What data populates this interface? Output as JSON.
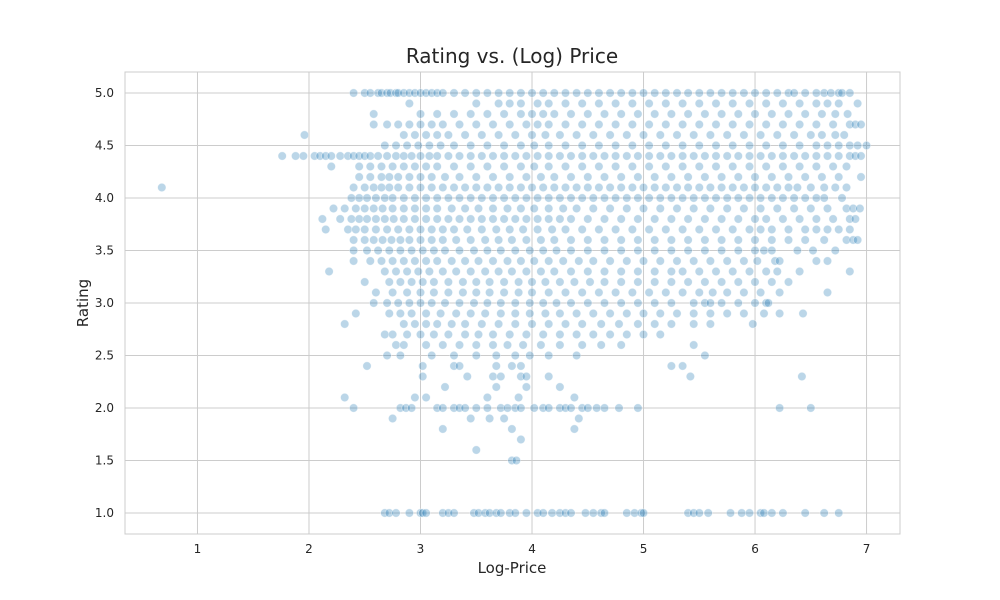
{
  "chart_data": {
    "type": "scatter",
    "title": "Rating vs. (Log) Price",
    "xlabel": "Log-Price",
    "ylabel": "Rating",
    "xlim": [
      0.35,
      7.3
    ],
    "ylim": [
      0.8,
      5.2
    ],
    "xticks": [
      1,
      2,
      3,
      4,
      5,
      6,
      7
    ],
    "yticks": [
      "1.0",
      "1.5",
      "2.0",
      "2.5",
      "3.0",
      "3.5",
      "4.0",
      "4.5",
      "5.0"
    ],
    "grid": true,
    "color": "#1f77b4",
    "rating_bands": [
      {
        "rating": 5.0,
        "x": [
          2.4,
          2.5,
          2.55,
          2.62,
          2.65,
          2.7,
          2.73,
          2.78,
          2.8,
          2.85,
          2.9,
          2.95,
          3.0,
          3.05,
          3.1,
          3.15,
          3.2,
          3.3,
          3.4,
          3.5,
          3.6,
          3.7,
          3.8,
          3.9,
          4.0,
          4.1,
          4.2,
          4.3,
          4.4,
          4.5,
          4.6,
          4.7,
          4.8,
          4.9,
          5.0,
          5.1,
          5.2,
          5.3,
          5.4,
          5.5,
          5.6,
          5.7,
          5.8,
          5.9,
          6.0,
          6.1,
          6.2,
          6.3,
          6.35,
          6.45,
          6.55,
          6.62,
          6.68,
          6.75,
          6.78,
          6.85
        ]
      },
      {
        "rating": 4.9,
        "x": [
          2.9,
          3.5,
          3.7,
          3.8,
          3.9,
          4.05,
          4.15,
          4.3,
          4.45,
          4.6,
          4.75,
          4.9,
          5.05,
          5.2,
          5.35,
          5.5,
          5.65,
          5.8,
          5.95,
          6.1,
          6.25,
          6.4,
          6.55,
          6.65,
          6.75,
          6.92
        ]
      },
      {
        "rating": 4.8,
        "x": [
          2.58,
          3.0,
          3.15,
          3.3,
          3.45,
          3.6,
          3.75,
          3.9,
          4.0,
          4.1,
          4.2,
          4.35,
          4.5,
          4.65,
          4.8,
          4.95,
          5.1,
          5.25,
          5.4,
          5.55,
          5.7,
          5.85,
          6.0,
          6.15,
          6.3,
          6.45,
          6.6,
          6.72,
          6.83
        ]
      },
      {
        "rating": 4.7,
        "x": [
          2.58,
          2.7,
          2.8,
          2.9,
          3.0,
          3.1,
          3.2,
          3.35,
          3.5,
          3.65,
          3.8,
          3.95,
          4.05,
          4.15,
          4.3,
          4.45,
          4.6,
          4.75,
          4.9,
          5.05,
          5.2,
          5.35,
          5.5,
          5.65,
          5.8,
          5.95,
          6.1,
          6.25,
          6.4,
          6.55,
          6.7,
          6.85,
          6.9,
          6.95
        ]
      },
      {
        "rating": 4.6,
        "x": [
          1.96,
          2.85,
          2.95,
          3.05,
          3.15,
          3.25,
          3.4,
          3.55,
          3.7,
          3.85,
          4.0,
          4.12,
          4.25,
          4.4,
          4.55,
          4.7,
          4.85,
          5.0,
          5.15,
          5.3,
          5.45,
          5.6,
          5.75,
          5.9,
          6.05,
          6.2,
          6.35,
          6.5,
          6.6,
          6.72,
          6.8
        ]
      },
      {
        "rating": 4.5,
        "x": [
          2.68,
          2.78,
          2.88,
          2.98,
          3.08,
          3.18,
          3.3,
          3.45,
          3.6,
          3.75,
          3.9,
          4.02,
          4.15,
          4.3,
          4.45,
          4.6,
          4.75,
          4.9,
          5.05,
          5.2,
          5.35,
          5.5,
          5.65,
          5.8,
          5.95,
          6.1,
          6.25,
          6.4,
          6.55,
          6.65,
          6.75,
          6.85,
          6.92,
          7.0
        ]
      },
      {
        "rating": 4.4,
        "x": [
          1.76,
          1.88,
          1.95,
          2.05,
          2.1,
          2.15,
          2.2,
          2.28,
          2.35,
          2.4,
          2.45,
          2.5,
          2.55,
          2.62,
          2.7,
          2.78,
          2.85,
          2.92,
          3.0,
          3.08,
          3.15,
          3.25,
          3.35,
          3.45,
          3.55,
          3.65,
          3.75,
          3.85,
          3.95,
          4.05,
          4.15,
          4.25,
          4.35,
          4.45,
          4.55,
          4.65,
          4.75,
          4.85,
          4.95,
          5.05,
          5.15,
          5.25,
          5.35,
          5.45,
          5.55,
          5.65,
          5.75,
          5.85,
          5.95,
          6.05,
          6.15,
          6.25,
          6.35,
          6.45,
          6.55,
          6.65,
          6.75,
          6.85,
          6.9,
          6.95
        ]
      },
      {
        "rating": 4.3,
        "x": [
          2.2,
          2.45,
          2.55,
          2.65,
          2.75,
          2.85,
          2.95,
          3.05,
          3.15,
          3.3,
          3.45,
          3.6,
          3.75,
          3.9,
          4.02,
          4.15,
          4.3,
          4.45,
          4.6,
          4.75,
          4.9,
          5.05,
          5.2,
          5.35,
          5.5,
          5.65,
          5.8,
          5.95,
          6.1,
          6.25,
          6.4,
          6.55,
          6.7,
          6.82
        ]
      },
      {
        "rating": 4.2,
        "x": [
          2.45,
          2.55,
          2.65,
          2.72,
          2.8,
          2.9,
          3.0,
          3.1,
          3.22,
          3.35,
          3.5,
          3.65,
          3.8,
          3.95,
          4.08,
          4.2,
          4.35,
          4.5,
          4.65,
          4.8,
          4.95,
          5.1,
          5.25,
          5.4,
          5.55,
          5.7,
          5.85,
          6.0,
          6.15,
          6.3,
          6.45,
          6.6,
          6.75,
          6.95
        ]
      },
      {
        "rating": 4.1,
        "x": [
          0.68,
          2.4,
          2.5,
          2.58,
          2.65,
          2.72,
          2.8,
          2.9,
          3.0,
          3.1,
          3.2,
          3.3,
          3.4,
          3.5,
          3.6,
          3.7,
          3.8,
          3.9,
          4.0,
          4.1,
          4.2,
          4.3,
          4.4,
          4.5,
          4.6,
          4.7,
          4.8,
          4.9,
          5.0,
          5.1,
          5.2,
          5.3,
          5.4,
          5.5,
          5.6,
          5.7,
          5.8,
          5.9,
          6.0,
          6.1,
          6.2,
          6.3,
          6.38,
          6.5,
          6.62,
          6.72,
          6.82
        ]
      },
      {
        "rating": 4.0,
        "x": [
          2.38,
          2.45,
          2.52,
          2.6,
          2.68,
          2.75,
          2.85,
          2.95,
          3.05,
          3.15,
          3.25,
          3.35,
          3.45,
          3.55,
          3.65,
          3.75,
          3.85,
          3.95,
          4.05,
          4.15,
          4.25,
          4.35,
          4.45,
          4.55,
          4.65,
          4.75,
          4.85,
          4.95,
          5.05,
          5.15,
          5.25,
          5.35,
          5.45,
          5.55,
          5.65,
          5.75,
          5.85,
          5.95,
          6.05,
          6.15,
          6.25,
          6.35,
          6.45,
          6.55,
          6.62,
          6.78
        ]
      },
      {
        "rating": 3.9,
        "x": [
          2.22,
          2.32,
          2.42,
          2.5,
          2.58,
          2.66,
          2.75,
          2.85,
          2.95,
          3.05,
          3.15,
          3.28,
          3.4,
          3.52,
          3.65,
          3.78,
          3.9,
          4.02,
          4.15,
          4.28,
          4.4,
          4.55,
          4.7,
          4.85,
          5.0,
          5.15,
          5.3,
          5.45,
          5.6,
          5.75,
          5.9,
          6.05,
          6.2,
          6.35,
          6.5,
          6.65,
          6.82,
          6.88,
          6.94
        ]
      },
      {
        "rating": 3.8,
        "x": [
          2.12,
          2.28,
          2.38,
          2.45,
          2.52,
          2.6,
          2.68,
          2.76,
          2.85,
          2.95,
          3.05,
          3.15,
          3.25,
          3.35,
          3.45,
          3.55,
          3.65,
          3.75,
          3.85,
          3.95,
          4.05,
          4.15,
          4.25,
          4.35,
          4.5,
          4.65,
          4.8,
          4.95,
          5.1,
          5.25,
          5.4,
          5.55,
          5.7,
          5.85,
          6.0,
          6.1,
          6.25,
          6.4,
          6.55,
          6.7,
          6.85,
          6.9
        ]
      },
      {
        "rating": 3.7,
        "x": [
          2.15,
          2.35,
          2.42,
          2.5,
          2.6,
          2.7,
          2.8,
          2.9,
          3.0,
          3.1,
          3.2,
          3.3,
          3.42,
          3.55,
          3.68,
          3.8,
          3.92,
          4.05,
          4.18,
          4.3,
          4.45,
          4.6,
          4.75,
          4.9,
          5.05,
          5.2,
          5.35,
          5.5,
          5.65,
          5.8,
          5.95,
          6.05,
          6.15,
          6.3,
          6.45,
          6.55,
          6.65,
          6.75,
          6.85
        ]
      },
      {
        "rating": 3.6,
        "x": [
          2.4,
          2.5,
          2.58,
          2.66,
          2.74,
          2.82,
          2.9,
          3.0,
          3.1,
          3.2,
          3.32,
          3.45,
          3.58,
          3.7,
          3.82,
          3.95,
          4.08,
          4.2,
          4.35,
          4.5,
          4.65,
          4.8,
          4.95,
          5.1,
          5.25,
          5.4,
          5.55,
          5.7,
          5.85,
          6.0,
          6.15,
          6.3,
          6.45,
          6.62,
          6.82,
          6.88,
          6.92
        ]
      },
      {
        "rating": 3.5,
        "x": [
          2.4,
          2.52,
          2.62,
          2.72,
          2.82,
          2.92,
          3.02,
          3.12,
          3.22,
          3.35,
          3.48,
          3.6,
          3.72,
          3.85,
          3.98,
          4.1,
          4.22,
          4.35,
          4.5,
          4.65,
          4.8,
          4.95,
          5.1,
          5.25,
          5.4,
          5.55,
          5.7,
          5.85,
          6.0,
          6.08,
          6.15,
          6.38,
          6.52,
          6.72
        ]
      },
      {
        "rating": 3.4,
        "x": [
          2.4,
          2.55,
          2.65,
          2.75,
          2.85,
          2.95,
          3.05,
          3.15,
          3.28,
          3.4,
          3.52,
          3.65,
          3.78,
          3.9,
          4.02,
          4.15,
          4.28,
          4.42,
          4.55,
          4.7,
          4.85,
          5.0,
          5.15,
          5.3,
          5.45,
          5.6,
          5.75,
          5.9,
          6.02,
          6.18,
          6.22,
          6.55,
          6.65
        ]
      },
      {
        "rating": 3.3,
        "x": [
          2.18,
          2.68,
          2.78,
          2.88,
          2.98,
          3.08,
          3.2,
          3.32,
          3.45,
          3.58,
          3.7,
          3.82,
          3.95,
          4.08,
          4.2,
          4.35,
          4.5,
          4.65,
          4.8,
          4.95,
          5.1,
          5.25,
          5.35,
          5.5,
          5.65,
          5.8,
          5.95,
          6.1,
          6.2,
          6.4,
          6.85
        ]
      },
      {
        "rating": 3.2,
        "x": [
          2.5,
          2.72,
          2.82,
          2.92,
          3.02,
          3.12,
          3.25,
          3.38,
          3.5,
          3.62,
          3.75,
          3.88,
          4.0,
          4.12,
          4.25,
          4.38,
          4.52,
          4.65,
          4.8,
          4.95,
          5.1,
          5.25,
          5.4,
          5.55,
          5.7,
          5.85,
          6.0,
          6.15,
          6.3
        ]
      },
      {
        "rating": 3.1,
        "x": [
          2.6,
          2.75,
          2.88,
          3.0,
          3.12,
          3.25,
          3.38,
          3.5,
          3.62,
          3.75,
          3.88,
          4.0,
          4.15,
          4.3,
          4.45,
          4.6,
          4.75,
          4.9,
          5.05,
          5.2,
          5.35,
          5.5,
          5.62,
          5.75,
          5.9,
          6.05,
          6.22,
          6.65
        ]
      },
      {
        "rating": 3.0,
        "x": [
          2.58,
          2.7,
          2.8,
          2.9,
          3.0,
          3.1,
          3.22,
          3.35,
          3.48,
          3.6,
          3.72,
          3.85,
          3.98,
          4.1,
          4.22,
          4.35,
          4.5,
          4.65,
          4.8,
          4.95,
          5.1,
          5.25,
          5.45,
          5.55,
          5.6,
          5.7,
          5.85,
          6.0,
          6.1,
          6.12
        ]
      },
      {
        "rating": 2.9,
        "x": [
          2.42,
          2.72,
          2.82,
          2.92,
          3.05,
          3.18,
          3.32,
          3.45,
          3.58,
          3.72,
          3.85,
          3.98,
          4.12,
          4.25,
          4.4,
          4.55,
          4.7,
          4.85,
          5.0,
          5.15,
          5.3,
          5.45,
          5.6,
          5.75,
          5.9,
          6.08,
          6.22,
          6.43
        ]
      },
      {
        "rating": 2.8,
        "x": [
          2.32,
          2.85,
          2.95,
          3.05,
          3.15,
          3.28,
          3.4,
          3.55,
          3.7,
          3.85,
          4.0,
          4.15,
          4.3,
          4.45,
          4.62,
          4.78,
          4.95,
          5.1,
          5.25,
          5.45,
          5.6,
          5.98
        ]
      },
      {
        "rating": 2.7,
        "x": [
          2.68,
          2.75,
          2.88,
          3.0,
          3.12,
          3.25,
          3.4,
          3.52,
          3.65,
          3.8,
          3.95,
          4.1,
          4.25,
          4.4,
          4.55,
          4.7,
          4.85,
          5.0,
          5.15
        ]
      },
      {
        "rating": 2.6,
        "x": [
          2.78,
          2.85,
          3.05,
          3.2,
          3.35,
          3.5,
          3.65,
          3.78,
          3.92,
          4.08,
          4.25,
          4.45,
          4.62,
          4.8,
          5.45
        ]
      },
      {
        "rating": 2.5,
        "x": [
          2.7,
          2.82,
          3.1,
          3.3,
          3.5,
          3.68,
          3.85,
          3.98,
          4.15,
          4.4,
          5.55
        ]
      },
      {
        "rating": 2.4,
        "x": [
          2.52,
          3.02,
          3.3,
          3.35,
          3.68,
          3.82,
          3.9,
          5.25,
          5.35
        ]
      },
      {
        "rating": 2.3,
        "x": [
          3.02,
          3.42,
          3.65,
          3.72,
          3.9,
          3.95,
          4.15,
          5.42,
          6.42
        ]
      },
      {
        "rating": 2.2,
        "x": [
          3.22,
          3.68,
          3.95,
          4.25
        ]
      },
      {
        "rating": 2.1,
        "x": [
          2.32,
          2.95,
          3.05,
          3.6,
          3.88,
          4.38
        ]
      },
      {
        "rating": 2.0,
        "x": [
          2.4,
          2.82,
          2.87,
          2.92,
          3.15,
          3.2,
          3.3,
          3.35,
          3.4,
          3.5,
          3.6,
          3.72,
          3.78,
          3.85,
          3.9,
          4.02,
          4.1,
          4.15,
          4.25,
          4.3,
          4.35,
          4.45,
          4.5,
          4.58,
          4.65,
          4.78,
          4.95,
          6.22,
          6.5
        ]
      },
      {
        "rating": 1.9,
        "x": [
          2.75,
          3.45,
          3.62,
          3.75,
          4.42
        ]
      },
      {
        "rating": 1.8,
        "x": [
          3.2,
          3.82,
          4.38
        ]
      },
      {
        "rating": 1.7,
        "x": [
          3.9
        ]
      },
      {
        "rating": 1.6,
        "x": [
          3.5
        ]
      },
      {
        "rating": 1.5,
        "x": [
          3.82,
          3.86
        ]
      },
      {
        "rating": 1.0,
        "x": [
          2.68,
          2.72,
          2.78,
          2.9,
          3.0,
          3.02,
          3.05,
          3.2,
          3.25,
          3.3,
          3.48,
          3.52,
          3.58,
          3.62,
          3.68,
          3.72,
          3.8,
          3.85,
          3.95,
          4.05,
          4.1,
          4.18,
          4.25,
          4.3,
          4.35,
          4.48,
          4.55,
          4.62,
          4.65,
          4.85,
          4.92,
          4.98,
          5.0,
          5.4,
          5.45,
          5.5,
          5.58,
          5.78,
          5.88,
          5.95,
          6.05,
          6.08,
          6.15,
          6.25,
          6.45,
          6.62,
          6.75
        ]
      }
    ]
  }
}
